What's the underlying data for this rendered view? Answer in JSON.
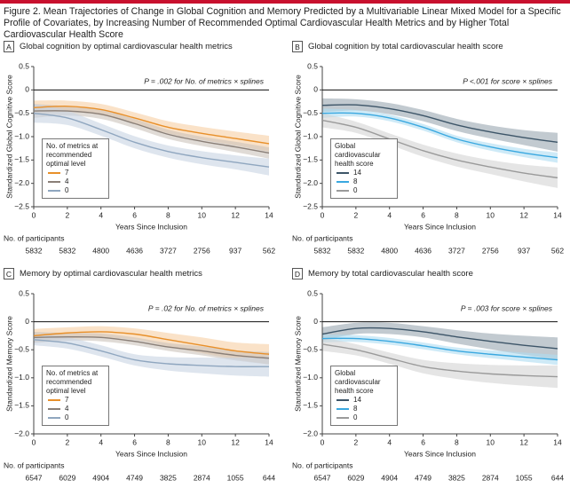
{
  "figure_title": "Figure 2. Mean Trajectories of Change in Global Cognition and Memory Predicted by a Multivariable Linear Mixed Model for a Specific Profile of Covariates, by Increasing Number of Recommended Optimal Cardiovascular Health Metrics and by Higher Total Cardiovascular Health Score",
  "chart_data": [
    {
      "type": "line",
      "letter": "A",
      "title": "Global cognition by optimal cardiovascular health metrics",
      "annotation": "P = .002 for No. of metrics × splines",
      "xlabel": "Years Since Inclusion",
      "ylabel": "Standardized Global Cognitive Score",
      "x": [
        0,
        2,
        4,
        6,
        8,
        10,
        12,
        14
      ],
      "xlim": [
        0,
        14
      ],
      "xticks": [
        0,
        2,
        4,
        6,
        8,
        10,
        12,
        14
      ],
      "ylim": [
        -2.5,
        0.5
      ],
      "yticks": [
        {
          "value": -2.5,
          "label": "−2.5"
        },
        {
          "value": -2,
          "label": "−2.0"
        },
        {
          "value": -1.5,
          "label": "−1.5"
        },
        {
          "value": -1,
          "label": "−1.0"
        },
        {
          "value": -0.5,
          "label": "−0.5"
        },
        0,
        0.5
      ],
      "legend": "lower left",
      "legend_title": "No. of metrics at recommended optimal level",
      "series": [
        {
          "name": "7",
          "color": "#e8902a",
          "band_color": "#f6cfa4",
          "values": [
            -0.38,
            -0.35,
            -0.42,
            -0.6,
            -0.8,
            -0.93,
            -1.04,
            -1.15
          ],
          "lower": [
            -0.53,
            -0.47,
            -0.54,
            -0.72,
            -0.93,
            -1.07,
            -1.19,
            -1.32
          ],
          "upper": [
            -0.23,
            -0.23,
            -0.3,
            -0.48,
            -0.67,
            -0.79,
            -0.89,
            -0.98
          ]
        },
        {
          "name": "4",
          "color": "#8a7f77",
          "band_color": "#cbc3bb",
          "values": [
            -0.45,
            -0.45,
            -0.52,
            -0.72,
            -0.95,
            -1.1,
            -1.22,
            -1.35
          ],
          "lower": [
            -0.6,
            -0.55,
            -0.62,
            -0.82,
            -1.05,
            -1.2,
            -1.33,
            -1.47
          ],
          "upper": [
            -0.3,
            -0.35,
            -0.42,
            -0.62,
            -0.85,
            -1.0,
            -1.11,
            -1.23
          ]
        },
        {
          "name": "0",
          "color": "#8fa6bf",
          "band_color": "#c8d4e2",
          "values": [
            -0.5,
            -0.6,
            -0.85,
            -1.12,
            -1.32,
            -1.45,
            -1.55,
            -1.65
          ],
          "lower": [
            -0.7,
            -0.75,
            -0.98,
            -1.25,
            -1.45,
            -1.59,
            -1.7,
            -1.83
          ],
          "upper": [
            -0.3,
            -0.45,
            -0.72,
            -0.99,
            -1.19,
            -1.31,
            -1.4,
            -1.47
          ]
        }
      ],
      "participants_label": "No. of participants",
      "participants": [
        "5832",
        "5832",
        "4800",
        "4636",
        "3727",
        "2756",
        "937",
        "562"
      ]
    },
    {
      "type": "line",
      "letter": "B",
      "title": "Global cognition by total cardiovascular health score",
      "annotation": "P <.001 for score × splines",
      "xlabel": "Years Since Inclusion",
      "ylabel": "Standardized Global Cognitive Score",
      "x": [
        0,
        2,
        4,
        6,
        8,
        10,
        12,
        14
      ],
      "xlim": [
        0,
        14
      ],
      "xticks": [
        0,
        2,
        4,
        6,
        8,
        10,
        12,
        14
      ],
      "ylim": [
        -2.5,
        0.5
      ],
      "yticks": [
        {
          "value": -2.5,
          "label": "−2.5"
        },
        {
          "value": -2,
          "label": "−2.0"
        },
        {
          "value": -1.5,
          "label": "−1.5"
        },
        {
          "value": -1,
          "label": "−1.0"
        },
        {
          "value": -0.5,
          "label": "−0.5"
        },
        0,
        0.5
      ],
      "legend": "lower left",
      "legend_title": "Global cardiovascular health score",
      "series": [
        {
          "name": "14",
          "color": "#3d5568",
          "band_color": "#9aa6b0",
          "values": [
            -0.33,
            -0.32,
            -0.4,
            -0.55,
            -0.75,
            -0.9,
            -1.02,
            -1.12
          ],
          "lower": [
            -0.48,
            -0.44,
            -0.52,
            -0.67,
            -0.88,
            -1.04,
            -1.18,
            -1.32
          ],
          "upper": [
            -0.18,
            -0.2,
            -0.28,
            -0.43,
            -0.62,
            -0.76,
            -0.86,
            -0.92
          ]
        },
        {
          "name": "8",
          "color": "#3aa8e0",
          "band_color": "#aedcf2",
          "values": [
            -0.5,
            -0.5,
            -0.6,
            -0.8,
            -1.05,
            -1.22,
            -1.35,
            -1.45
          ],
          "lower": [
            -0.6,
            -0.57,
            -0.67,
            -0.87,
            -1.12,
            -1.3,
            -1.44,
            -1.56
          ],
          "upper": [
            -0.4,
            -0.43,
            -0.53,
            -0.73,
            -0.98,
            -1.14,
            -1.26,
            -1.34
          ]
        },
        {
          "name": "0",
          "color": "#9a9a9a",
          "band_color": "#d4d4d4",
          "values": [
            -0.65,
            -0.8,
            -1.05,
            -1.3,
            -1.5,
            -1.65,
            -1.78,
            -1.88
          ],
          "lower": [
            -0.8,
            -0.92,
            -1.17,
            -1.43,
            -1.64,
            -1.8,
            -1.96,
            -2.1
          ],
          "upper": [
            -0.5,
            -0.68,
            -0.93,
            -1.17,
            -1.36,
            -1.5,
            -1.6,
            -1.66
          ]
        }
      ],
      "participants_label": "No. of participants",
      "participants": [
        "5832",
        "5832",
        "4800",
        "4636",
        "3727",
        "2756",
        "937",
        "562"
      ]
    },
    {
      "type": "line",
      "letter": "C",
      "title": "Memory by optimal cardiovascular health metrics",
      "annotation": "P = .02 for No. of metrics × splines",
      "xlabel": "Years Since Inclusion",
      "ylabel": "Standardized Memory Score",
      "x": [
        0,
        2,
        4,
        6,
        8,
        10,
        12,
        14
      ],
      "xlim": [
        0,
        14
      ],
      "xticks": [
        0,
        2,
        4,
        6,
        8,
        10,
        12,
        14
      ],
      "ylim": [
        -2,
        0.5
      ],
      "yticks": [
        {
          "value": -2,
          "label": "−2.0"
        },
        {
          "value": -1.5,
          "label": "−1.5"
        },
        {
          "value": -1,
          "label": "−1.0"
        },
        {
          "value": -0.5,
          "label": "−0.5"
        },
        0,
        0.5
      ],
      "legend": "lower left",
      "legend_title": "No. of metrics at recommended optimal level",
      "series": [
        {
          "name": "7",
          "color": "#e8902a",
          "band_color": "#f6cfa4",
          "values": [
            -0.25,
            -0.2,
            -0.18,
            -0.22,
            -0.32,
            -0.42,
            -0.52,
            -0.58
          ],
          "lower": [
            -0.37,
            -0.3,
            -0.28,
            -0.32,
            -0.44,
            -0.56,
            -0.67,
            -0.76
          ],
          "upper": [
            -0.13,
            -0.1,
            -0.08,
            -0.12,
            -0.2,
            -0.28,
            -0.37,
            -0.4
          ]
        },
        {
          "name": "4",
          "color": "#8a7f77",
          "band_color": "#cbc3bb",
          "values": [
            -0.28,
            -0.27,
            -0.28,
            -0.35,
            -0.45,
            -0.52,
            -0.6,
            -0.65
          ],
          "lower": [
            -0.38,
            -0.34,
            -0.35,
            -0.42,
            -0.52,
            -0.6,
            -0.69,
            -0.76
          ],
          "upper": [
            -0.18,
            -0.2,
            -0.21,
            -0.28,
            -0.38,
            -0.44,
            -0.51,
            -0.54
          ]
        },
        {
          "name": "0",
          "color": "#8fa6bf",
          "band_color": "#c8d4e2",
          "values": [
            -0.32,
            -0.38,
            -0.52,
            -0.68,
            -0.75,
            -0.78,
            -0.8,
            -0.8
          ],
          "lower": [
            -0.42,
            -0.48,
            -0.62,
            -0.78,
            -0.87,
            -0.92,
            -0.96,
            -0.98
          ],
          "upper": [
            -0.22,
            -0.28,
            -0.42,
            -0.58,
            -0.63,
            -0.64,
            -0.64,
            -0.62
          ]
        }
      ],
      "participants_label": "No. of participants",
      "participants": [
        "6547",
        "6029",
        "4904",
        "4749",
        "3825",
        "2874",
        "1055",
        "644"
      ]
    },
    {
      "type": "line",
      "letter": "D",
      "title": "Memory by total cardiovascular health score",
      "annotation": "P = .003 for score × splines",
      "xlabel": "Years Since Inclusion",
      "ylabel": "Standardized Memory Score",
      "x": [
        0,
        2,
        4,
        6,
        8,
        10,
        12,
        14
      ],
      "xlim": [
        0,
        14
      ],
      "xticks": [
        0,
        2,
        4,
        6,
        8,
        10,
        12,
        14
      ],
      "ylim": [
        -2,
        0.5
      ],
      "yticks": [
        {
          "value": -2,
          "label": "−2.0"
        },
        {
          "value": -1.5,
          "label": "−1.5"
        },
        {
          "value": -1,
          "label": "−1.0"
        },
        {
          "value": -0.5,
          "label": "−0.5"
        },
        0,
        0.5
      ],
      "legend": "lower left",
      "legend_title": "Global cardiovascular health score",
      "series": [
        {
          "name": "14",
          "color": "#3d5568",
          "band_color": "#9aa6b0",
          "values": [
            -0.22,
            -0.12,
            -0.12,
            -0.18,
            -0.27,
            -0.35,
            -0.42,
            -0.48
          ],
          "lower": [
            -0.34,
            -0.22,
            -0.22,
            -0.28,
            -0.39,
            -0.49,
            -0.59,
            -0.68
          ],
          "upper": [
            -0.1,
            -0.02,
            -0.02,
            -0.08,
            -0.15,
            -0.21,
            -0.25,
            -0.28
          ]
        },
        {
          "name": "8",
          "color": "#3aa8e0",
          "band_color": "#aedcf2",
          "values": [
            -0.3,
            -0.3,
            -0.35,
            -0.43,
            -0.52,
            -0.58,
            -0.63,
            -0.68
          ],
          "lower": [
            -0.37,
            -0.36,
            -0.41,
            -0.49,
            -0.58,
            -0.65,
            -0.71,
            -0.77
          ],
          "upper": [
            -0.23,
            -0.24,
            -0.29,
            -0.37,
            -0.46,
            -0.51,
            -0.55,
            -0.59
          ]
        },
        {
          "name": "0",
          "color": "#9a9a9a",
          "band_color": "#d4d4d4",
          "values": [
            -0.4,
            -0.5,
            -0.65,
            -0.8,
            -0.88,
            -0.93,
            -0.96,
            -0.98
          ],
          "lower": [
            -0.52,
            -0.6,
            -0.75,
            -0.92,
            -1.02,
            -1.09,
            -1.14,
            -1.18
          ],
          "upper": [
            -0.28,
            -0.4,
            -0.55,
            -0.68,
            -0.74,
            -0.77,
            -0.78,
            -0.78
          ]
        }
      ],
      "participants_label": "No. of participants",
      "participants": [
        "6547",
        "6029",
        "4904",
        "4749",
        "3825",
        "2874",
        "1055",
        "644"
      ]
    }
  ]
}
